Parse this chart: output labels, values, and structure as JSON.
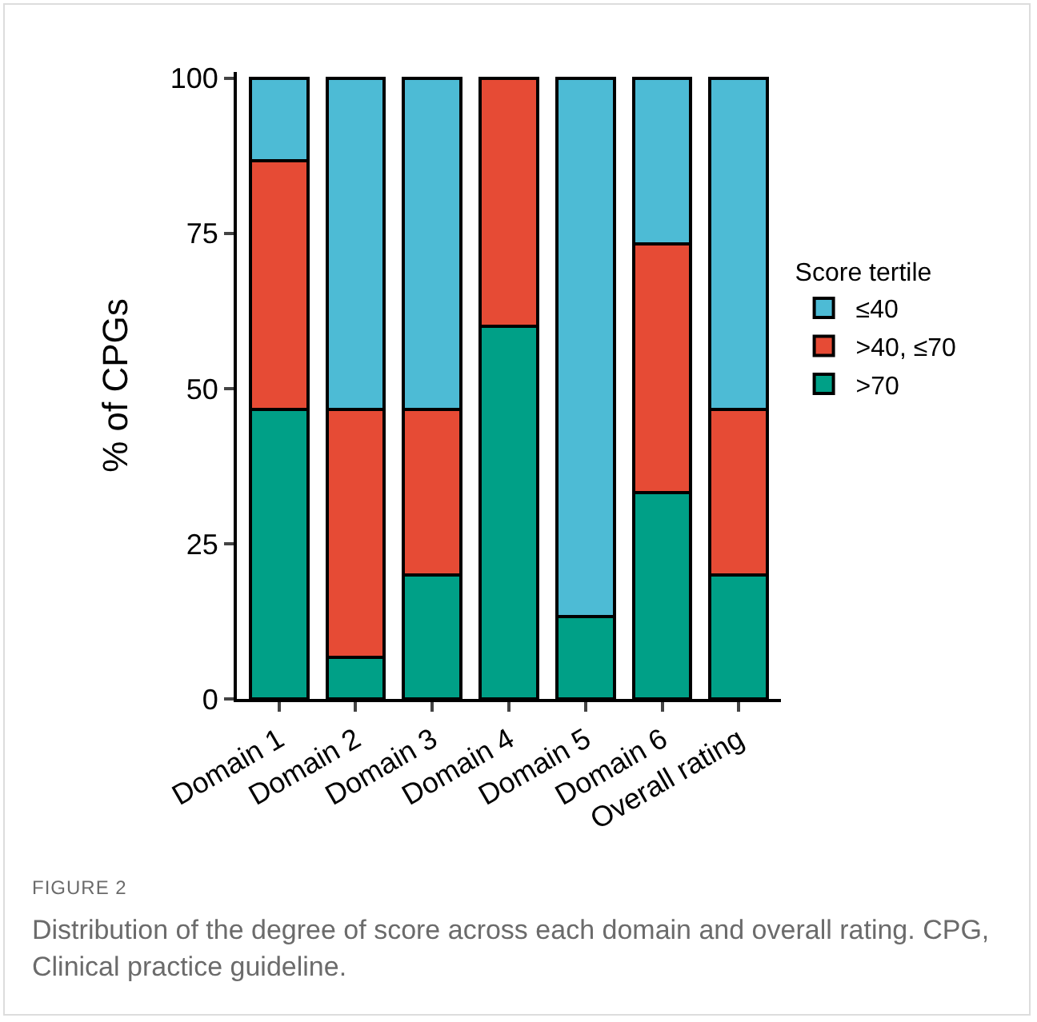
{
  "chart_data": {
    "type": "bar",
    "stacked": true,
    "ylabel": "% of CPGs",
    "legend_title": "Score tertile",
    "legend": "right",
    "categories": [
      "Domain 1",
      "Domain 2",
      "Domain 3",
      "Domain 4",
      "Domain 5",
      "Domain 6",
      "Overall rating"
    ],
    "series": [
      {
        "name": ">70",
        "color": "#00a087",
        "values": [
          46.7,
          6.7,
          20,
          60,
          13.3,
          33.3,
          20
        ]
      },
      {
        "name": ">40, ≤70",
        "color": "#e64b35",
        "values": [
          40,
          40,
          26.7,
          40,
          0,
          40,
          26.7
        ]
      },
      {
        "name": "≤40",
        "color": "#4dbbd5",
        "values": [
          13.3,
          53.3,
          53.3,
          0,
          86.7,
          26.7,
          53.3
        ]
      }
    ],
    "ylim": [
      0,
      101
    ],
    "yticks": [
      0,
      25,
      50,
      75,
      100
    ],
    "annotations": [
      "FIGURE 2",
      "Distribution of the degree of score across each domain and overall rating. CPG, Clinical practice guideline."
    ]
  }
}
